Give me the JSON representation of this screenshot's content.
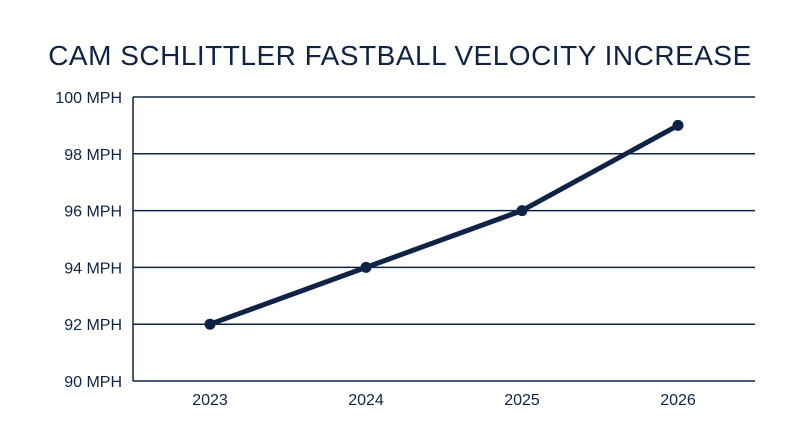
{
  "colors": {
    "primary": "#0f2347",
    "background": "#ffffff"
  },
  "chart_data": {
    "type": "line",
    "title": "CAM SCHLITTLER FASTBALL VELOCITY INCREASE",
    "xlabel": "",
    "ylabel": "",
    "categories": [
      "2023",
      "2024",
      "2025",
      "2026"
    ],
    "series": [
      {
        "values": [
          92,
          94,
          96,
          99
        ]
      }
    ],
    "ylim": [
      90,
      100
    ],
    "yticks": [
      90,
      92,
      94,
      96,
      98,
      100
    ],
    "ytick_labels": [
      "90 MPH",
      "92 MPH",
      "94 MPH",
      "96 MPH",
      "98 MPH",
      "100 MPH"
    ],
    "grid": true,
    "legend": "none"
  }
}
